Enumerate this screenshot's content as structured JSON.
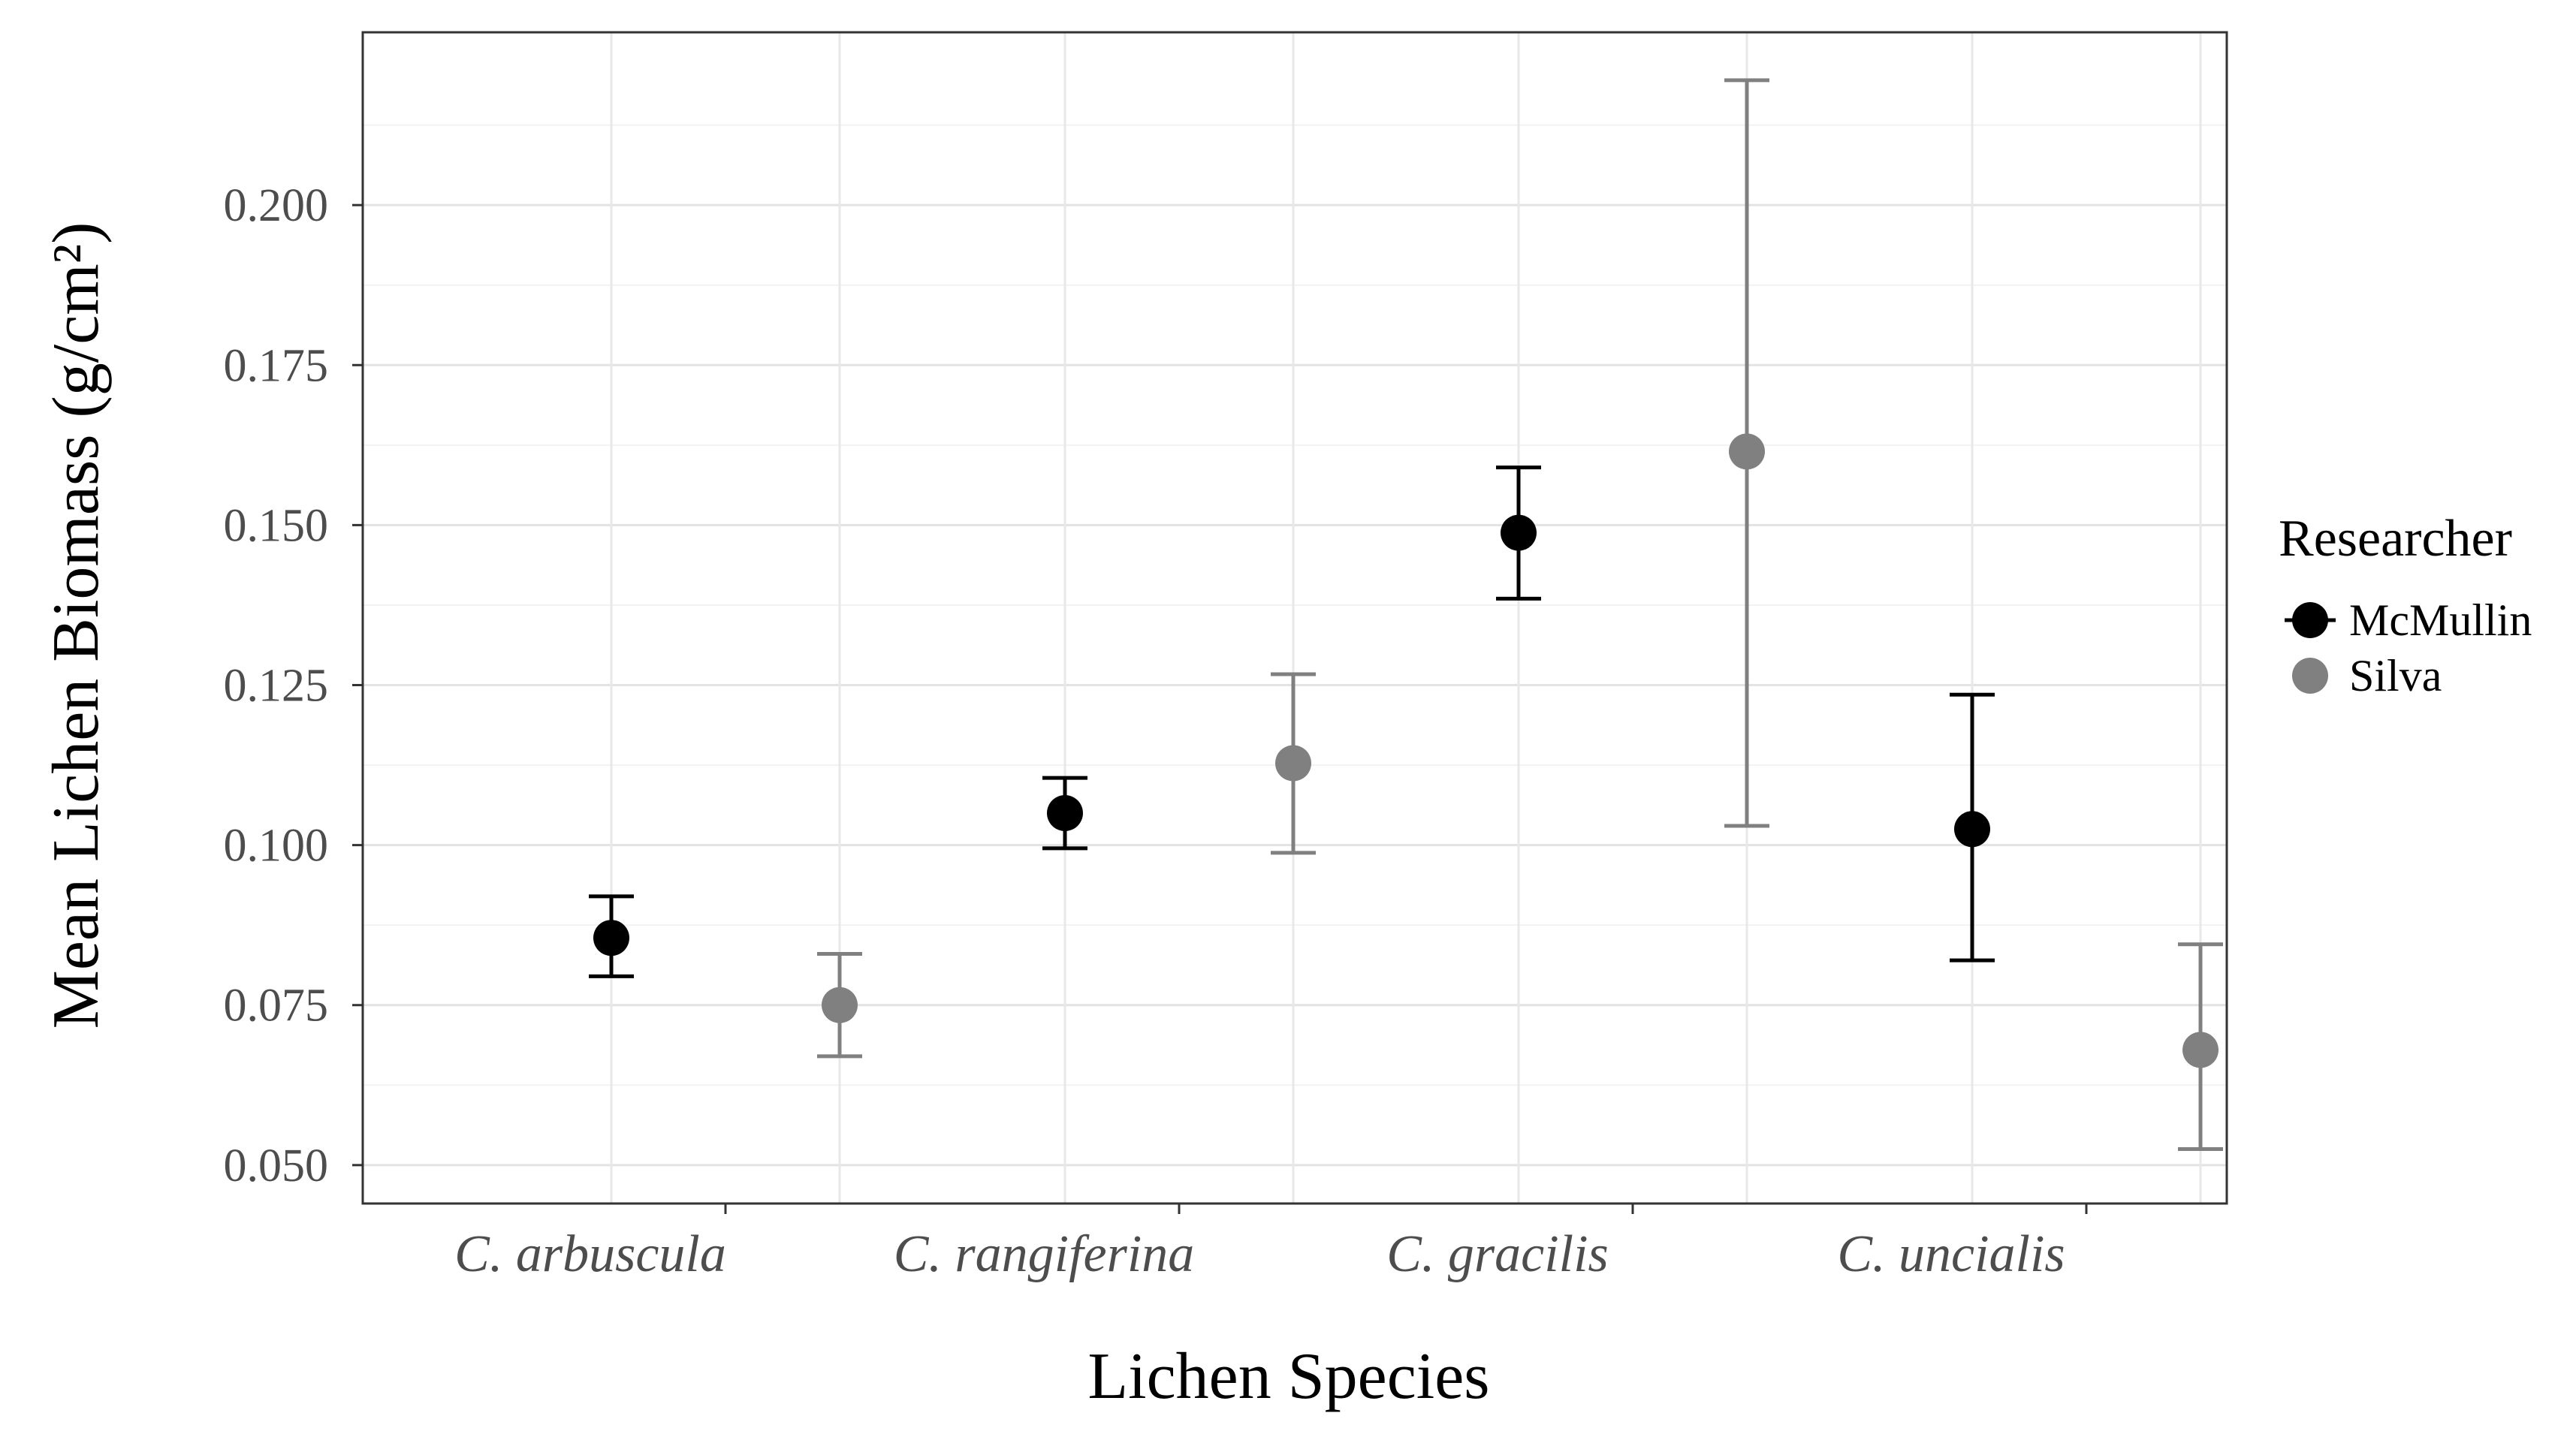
{
  "chart_data": {
    "type": "scatter",
    "subtype": "point-errorbar",
    "title": "",
    "xlabel": "Lichen Species",
    "ylabel": "Mean Lichen Biomass (g/cm²)",
    "categories": [
      "C. arbuscula",
      "C. rangiferina",
      "C. gracilis",
      "C. uncialis"
    ],
    "yticks": [
      "0.050",
      "0.075",
      "0.100",
      "0.125",
      "0.150",
      "0.175",
      "0.200"
    ],
    "ytick_values": [
      0.05,
      0.075,
      0.1,
      0.125,
      0.15,
      0.175,
      0.2
    ],
    "ylim": [
      0.044,
      0.227
    ],
    "grid": true,
    "legend": {
      "title": "Researcher",
      "placement": "right"
    },
    "series": [
      {
        "name": "McMullin",
        "color": "#000000",
        "values": [
          0.0855,
          0.105,
          0.1488,
          0.1025
        ],
        "lower": [
          0.0795,
          0.0995,
          0.1385,
          0.082
        ],
        "upper": [
          0.092,
          0.1105,
          0.159,
          0.1235
        ]
      },
      {
        "name": "Silva",
        "color": "#808080",
        "values": [
          0.075,
          0.1128,
          0.1615,
          0.068
        ],
        "lower": [
          0.067,
          0.0988,
          0.103,
          0.0525
        ],
        "upper": [
          0.083,
          0.1267,
          0.2195,
          0.0845
        ]
      }
    ]
  }
}
